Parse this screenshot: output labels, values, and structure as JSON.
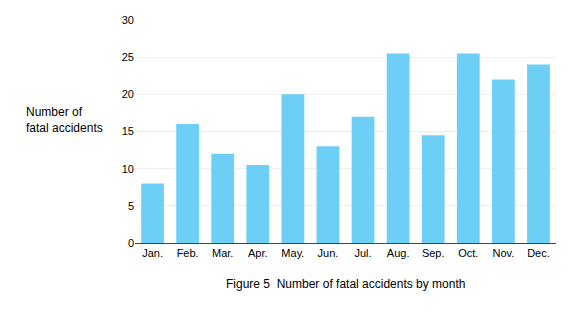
{
  "chart_data": {
    "type": "bar",
    "categories": [
      "Jan.",
      "Feb.",
      "Mar.",
      "Apr.",
      "May.",
      "Jun.",
      "Jul.",
      "Aug.",
      "Sep.",
      "Oct.",
      "Nov.",
      "Dec."
    ],
    "values": [
      8,
      16,
      12,
      10.5,
      20,
      13,
      17,
      25.5,
      14.5,
      25.5,
      22,
      24
    ],
    "color": "#6ECFF6",
    "ylim": [
      0,
      30
    ],
    "yticks": [
      0,
      5,
      10,
      15,
      20,
      25,
      30
    ],
    "ylabel": [
      "Number of",
      "fatal accidents"
    ],
    "caption": "Figure 5  Number of fatal accidents by month",
    "grid": true
  }
}
